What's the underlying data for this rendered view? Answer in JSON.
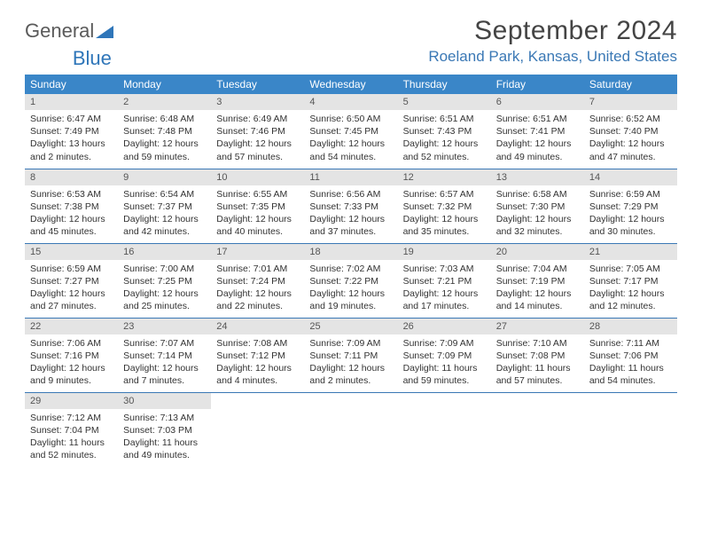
{
  "logo": {
    "text1": "General",
    "text2": "Blue"
  },
  "title": "September 2024",
  "location": "Roeland Park, Kansas, United States",
  "colors": {
    "header_bg": "#3a86c8",
    "header_fg": "#ffffff",
    "location_fg": "#3a78b5",
    "daynum_bg": "#e4e4e4",
    "rule": "#3a78b5",
    "text": "#333333"
  },
  "daylabels": [
    "Sunday",
    "Monday",
    "Tuesday",
    "Wednesday",
    "Thursday",
    "Friday",
    "Saturday"
  ],
  "weeks": [
    [
      {
        "n": "1",
        "sr": "6:47 AM",
        "ss": "7:49 PM",
        "dl": "13 hours and 2 minutes."
      },
      {
        "n": "2",
        "sr": "6:48 AM",
        "ss": "7:48 PM",
        "dl": "12 hours and 59 minutes."
      },
      {
        "n": "3",
        "sr": "6:49 AM",
        "ss": "7:46 PM",
        "dl": "12 hours and 57 minutes."
      },
      {
        "n": "4",
        "sr": "6:50 AM",
        "ss": "7:45 PM",
        "dl": "12 hours and 54 minutes."
      },
      {
        "n": "5",
        "sr": "6:51 AM",
        "ss": "7:43 PM",
        "dl": "12 hours and 52 minutes."
      },
      {
        "n": "6",
        "sr": "6:51 AM",
        "ss": "7:41 PM",
        "dl": "12 hours and 49 minutes."
      },
      {
        "n": "7",
        "sr": "6:52 AM",
        "ss": "7:40 PM",
        "dl": "12 hours and 47 minutes."
      }
    ],
    [
      {
        "n": "8",
        "sr": "6:53 AM",
        "ss": "7:38 PM",
        "dl": "12 hours and 45 minutes."
      },
      {
        "n": "9",
        "sr": "6:54 AM",
        "ss": "7:37 PM",
        "dl": "12 hours and 42 minutes."
      },
      {
        "n": "10",
        "sr": "6:55 AM",
        "ss": "7:35 PM",
        "dl": "12 hours and 40 minutes."
      },
      {
        "n": "11",
        "sr": "6:56 AM",
        "ss": "7:33 PM",
        "dl": "12 hours and 37 minutes."
      },
      {
        "n": "12",
        "sr": "6:57 AM",
        "ss": "7:32 PM",
        "dl": "12 hours and 35 minutes."
      },
      {
        "n": "13",
        "sr": "6:58 AM",
        "ss": "7:30 PM",
        "dl": "12 hours and 32 minutes."
      },
      {
        "n": "14",
        "sr": "6:59 AM",
        "ss": "7:29 PM",
        "dl": "12 hours and 30 minutes."
      }
    ],
    [
      {
        "n": "15",
        "sr": "6:59 AM",
        "ss": "7:27 PM",
        "dl": "12 hours and 27 minutes."
      },
      {
        "n": "16",
        "sr": "7:00 AM",
        "ss": "7:25 PM",
        "dl": "12 hours and 25 minutes."
      },
      {
        "n": "17",
        "sr": "7:01 AM",
        "ss": "7:24 PM",
        "dl": "12 hours and 22 minutes."
      },
      {
        "n": "18",
        "sr": "7:02 AM",
        "ss": "7:22 PM",
        "dl": "12 hours and 19 minutes."
      },
      {
        "n": "19",
        "sr": "7:03 AM",
        "ss": "7:21 PM",
        "dl": "12 hours and 17 minutes."
      },
      {
        "n": "20",
        "sr": "7:04 AM",
        "ss": "7:19 PM",
        "dl": "12 hours and 14 minutes."
      },
      {
        "n": "21",
        "sr": "7:05 AM",
        "ss": "7:17 PM",
        "dl": "12 hours and 12 minutes."
      }
    ],
    [
      {
        "n": "22",
        "sr": "7:06 AM",
        "ss": "7:16 PM",
        "dl": "12 hours and 9 minutes."
      },
      {
        "n": "23",
        "sr": "7:07 AM",
        "ss": "7:14 PM",
        "dl": "12 hours and 7 minutes."
      },
      {
        "n": "24",
        "sr": "7:08 AM",
        "ss": "7:12 PM",
        "dl": "12 hours and 4 minutes."
      },
      {
        "n": "25",
        "sr": "7:09 AM",
        "ss": "7:11 PM",
        "dl": "12 hours and 2 minutes."
      },
      {
        "n": "26",
        "sr": "7:09 AM",
        "ss": "7:09 PM",
        "dl": "11 hours and 59 minutes."
      },
      {
        "n": "27",
        "sr": "7:10 AM",
        "ss": "7:08 PM",
        "dl": "11 hours and 57 minutes."
      },
      {
        "n": "28",
        "sr": "7:11 AM",
        "ss": "7:06 PM",
        "dl": "11 hours and 54 minutes."
      }
    ],
    [
      {
        "n": "29",
        "sr": "7:12 AM",
        "ss": "7:04 PM",
        "dl": "11 hours and 52 minutes."
      },
      {
        "n": "30",
        "sr": "7:13 AM",
        "ss": "7:03 PM",
        "dl": "11 hours and 49 minutes."
      },
      null,
      null,
      null,
      null,
      null
    ]
  ],
  "labels": {
    "sunrise": "Sunrise:",
    "sunset": "Sunset:",
    "daylight": "Daylight:"
  }
}
